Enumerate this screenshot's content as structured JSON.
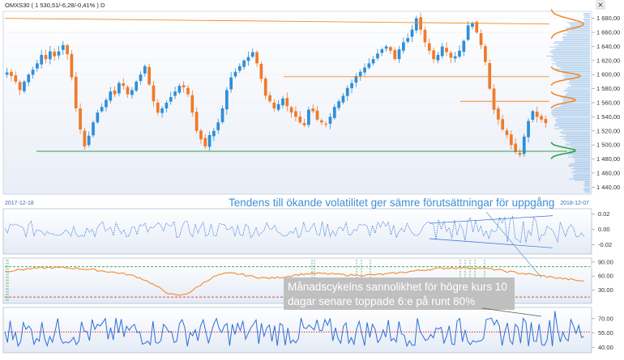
{
  "header": {
    "title": "OMXS30 ( 1 530,51/-6,28/-0,41% ) D"
  },
  "annotations": {
    "volatility": "Tendens till ökande volatilitet ger sämre förutsättningar för uppgång",
    "cycle_line1": "Månadscykelns sannolikhet för högre kurs 10",
    "cycle_line2": "dagar senare toppade 6:e på runt 80%"
  },
  "colors": {
    "up": "#2f8fd8",
    "down": "#f07a2a",
    "orange": "#f28a2e",
    "green": "#2ea043",
    "blue_line": "#2b6fd6",
    "red_dotted": "#e0302e"
  },
  "chart_data": [
    {
      "type": "candlestick",
      "title": "OMXS30",
      "start_date": "2017-12-18",
      "end_date": "2018-12-07",
      "ylim": [
        1430,
        1690
      ],
      "yticks": [
        "1 680,00",
        "1 660,00",
        "1 640,00",
        "1 620,00",
        "1 600,00",
        "1 580,00",
        "1 560,00",
        "1 540,00",
        "1 520,00",
        "1 500,00",
        "1 480,00",
        "1 460,00",
        "1 440,00"
      ],
      "close_series": [
        1603,
        1598,
        1590,
        1578,
        1590,
        1600,
        1607,
        1616,
        1628,
        1622,
        1633,
        1626,
        1633,
        1642,
        1629,
        1596,
        1552,
        1522,
        1498,
        1513,
        1532,
        1546,
        1554,
        1564,
        1576,
        1572,
        1588,
        1584,
        1572,
        1578,
        1590,
        1600,
        1612,
        1586,
        1562,
        1546,
        1552,
        1560,
        1568,
        1576,
        1584,
        1582,
        1572,
        1546,
        1520,
        1508,
        1498,
        1514,
        1520,
        1532,
        1552,
        1578,
        1596,
        1604,
        1612,
        1620,
        1625,
        1632,
        1616,
        1594,
        1570,
        1562,
        1552,
        1558,
        1566,
        1555,
        1546,
        1540,
        1532,
        1528,
        1550,
        1548,
        1536,
        1532,
        1530,
        1540,
        1554,
        1562,
        1570,
        1581,
        1588,
        1598,
        1604,
        1610,
        1616,
        1622,
        1630,
        1636,
        1640,
        1634,
        1622,
        1636,
        1646,
        1652,
        1664,
        1680,
        1664,
        1646,
        1634,
        1622,
        1628,
        1640,
        1632,
        1624,
        1626,
        1634,
        1648,
        1670,
        1673,
        1660,
        1642,
        1618,
        1580,
        1550,
        1536,
        1522,
        1514,
        1500,
        1490,
        1486,
        1512,
        1534,
        1548,
        1540,
        1536,
        1531
      ],
      "horizontal_levels": [
        {
          "color": "#f28a2e",
          "value": 1597
        },
        {
          "color": "#f28a2e",
          "value": 1562
        },
        {
          "color": "#2ea043",
          "value": 1491
        }
      ],
      "sloped_levels": [
        {
          "color": "#f28a2e",
          "from": 1680,
          "to": 1672
        }
      ]
    },
    {
      "type": "line",
      "name": "volatility",
      "ylim": [
        -0.03,
        0.025
      ],
      "yticks": [
        "0.02",
        "0.00",
        "-0.02"
      ]
    },
    {
      "type": "line",
      "name": "cycle_probability",
      "ylim": [
        5,
        95
      ],
      "yticks": [
        "90.00",
        "60.00",
        "30.00"
      ],
      "upper_band": 80,
      "lower_band": 15
    },
    {
      "type": "line",
      "name": "oscillator",
      "ylim": [
        36,
        80
      ],
      "yticks": [
        "70.00",
        "55.00",
        "40.00"
      ],
      "mid_band": 56
    }
  ]
}
